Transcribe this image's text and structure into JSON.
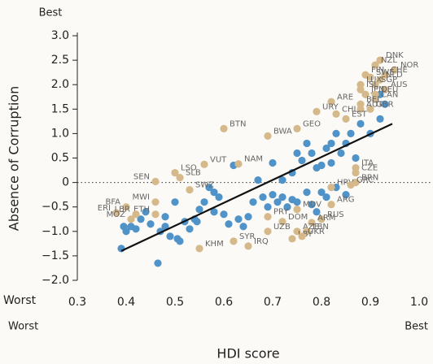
{
  "chart_data": {
    "type": "scatter",
    "xlabel": "HDI score",
    "ylabel": "Absence of Corruption",
    "annotations": [
      "Best",
      "Worst",
      "Worst",
      "Best"
    ],
    "xlim": [
      0.3,
      1.0
    ],
    "xticks": [
      0.3,
      0.4,
      0.5,
      0.6,
      0.7,
      0.8,
      0.9,
      {
        "value": 1.0,
        "label": "1.0"
      }
    ],
    "ylim": [
      -2.0,
      3.0
    ],
    "yticks": [
      {
        "value": -2.0,
        "label": "−2.0"
      },
      {
        "value": -1.5,
        "label": "−1.5"
      },
      {
        "value": -1.0,
        "label": "−1.0"
      },
      {
        "value": -0.5,
        "label": "−0.5"
      },
      0,
      0.5,
      {
        "value": 1.0,
        "label": "1.0"
      },
      1.5,
      {
        "value": 2.0,
        "label": "2.0"
      },
      2.5,
      {
        "value": 3.0,
        "label": "3.0"
      }
    ],
    "reference_line": 0,
    "trend_line": {
      "color": "#111111",
      "x": [
        0.39,
        0.945
      ],
      "y": [
        -1.4,
        1.2
      ]
    },
    "series": [
      {
        "color": "#4f93c8",
        "x": [
          0.39,
          0.395,
          0.4,
          0.41,
          0.42,
          0.43,
          0.44,
          0.45,
          0.465,
          0.47,
          0.48,
          0.48,
          0.49,
          0.5,
          0.505,
          0.51,
          0.52,
          0.53,
          0.54,
          0.545,
          0.55,
          0.56,
          0.57,
          0.58,
          0.58,
          0.59,
          0.6,
          0.61,
          0.62,
          0.63,
          0.64,
          0.65,
          0.66,
          0.67,
          0.68,
          0.69,
          0.7,
          0.7,
          0.71,
          0.72,
          0.72,
          0.73,
          0.74,
          0.74,
          0.75,
          0.75,
          0.76,
          0.77,
          0.77,
          0.78,
          0.78,
          0.79,
          0.79,
          0.8,
          0.8,
          0.81,
          0.81,
          0.82,
          0.82,
          0.83,
          0.83,
          0.84,
          0.85,
          0.85,
          0.86,
          0.87,
          0.88,
          0.9,
          0.92,
          0.93,
          0.92
        ],
        "values": [
          -1.35,
          -0.9,
          -1.0,
          -0.9,
          -0.95,
          -0.75,
          -0.6,
          -0.85,
          -1.65,
          -1.0,
          -0.7,
          -0.9,
          -1.1,
          -0.4,
          -1.15,
          -1.2,
          -0.8,
          -0.95,
          -0.75,
          -0.8,
          -0.55,
          -0.4,
          -0.1,
          -0.2,
          -0.6,
          -0.3,
          -0.65,
          -0.85,
          0.35,
          -0.75,
          -0.9,
          -0.7,
          -0.4,
          0.05,
          -0.3,
          -0.5,
          0.4,
          -0.25,
          -0.4,
          0.05,
          -0.3,
          -0.5,
          0.2,
          -0.35,
          0.6,
          -0.4,
          0.45,
          0.8,
          -0.2,
          0.6,
          -0.45,
          0.3,
          -0.6,
          0.35,
          -0.2,
          0.7,
          -0.3,
          0.8,
          0.4,
          1.0,
          -0.1,
          0.6,
          0.8,
          -0.25,
          1.0,
          0.5,
          1.2,
          1.0,
          1.3,
          1.6,
          1.8
        ]
      },
      {
        "color": "#d6b98a",
        "labels": [
          "DNK",
          "NZL",
          "NOR",
          "FIN",
          "CHE",
          "SWE",
          "NLD",
          "LUX",
          "SGP",
          "AUS",
          "ISL",
          "JPN",
          "DEU",
          "CAN",
          "BEL",
          "GBR",
          "ARE",
          "AUT",
          "CHL",
          "EST",
          "URY",
          "BTN",
          "GEO",
          "BWA",
          "VUT",
          "NAM",
          "LSO",
          "SLB",
          "SEN",
          "ITA",
          "CZE",
          "BRN",
          "HRV",
          "GRC",
          "BFA",
          "MWI",
          "ETH",
          "ERI",
          "LBR",
          "MOZ",
          "SWZ",
          "ARG",
          "DOM",
          "MDV",
          "RUS",
          "ARM",
          "AZE",
          "LBN",
          "LBY",
          "UKR",
          "UZB",
          "PRY",
          "SYR",
          "KHM",
          "IRQ"
        ],
        "x": [
          0.92,
          0.91,
          0.95,
          0.89,
          0.93,
          0.9,
          0.92,
          0.88,
          0.91,
          0.93,
          0.88,
          0.89,
          0.91,
          0.91,
          0.88,
          0.9,
          0.82,
          0.88,
          0.83,
          0.85,
          0.79,
          0.6,
          0.75,
          0.69,
          0.56,
          0.63,
          0.5,
          0.51,
          0.46,
          0.87,
          0.87,
          0.87,
          0.82,
          0.86,
          0.4,
          0.46,
          0.46,
          0.38,
          0.42,
          0.41,
          0.53,
          0.82,
          0.72,
          0.75,
          0.8,
          0.78,
          0.75,
          0.77,
          0.74,
          0.76,
          0.69,
          0.69,
          0.62,
          0.55,
          0.65
        ],
        "values": [
          2.5,
          2.4,
          2.3,
          2.2,
          2.2,
          2.15,
          2.1,
          2.0,
          2.0,
          1.9,
          1.9,
          1.8,
          1.8,
          1.7,
          1.6,
          1.5,
          1.65,
          1.5,
          1.4,
          1.3,
          1.45,
          1.1,
          1.1,
          0.95,
          0.37,
          0.38,
          0.2,
          0.1,
          0.02,
          0.3,
          0.2,
          0.0,
          -0.1,
          -0.05,
          -0.5,
          -0.4,
          -0.65,
          -0.62,
          -0.65,
          -0.75,
          -0.15,
          -0.45,
          -0.8,
          -0.55,
          -0.75,
          -0.82,
          -1.0,
          -1.0,
          -1.15,
          -1.1,
          -1.0,
          -0.7,
          -1.2,
          -1.35,
          -1.3
        ]
      }
    ]
  }
}
